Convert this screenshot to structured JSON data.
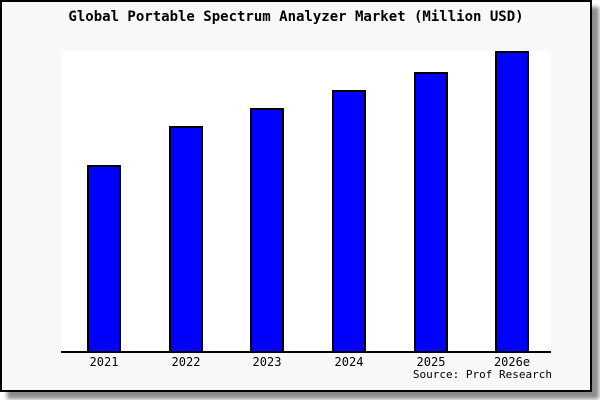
{
  "chart": {
    "source": "Source: Prof Research",
    "colors": {
      "bar_fill": "#0000ff",
      "bar_border": "#000000",
      "panel_bg": "#f8f8f8",
      "plot_bg": "#ffffff",
      "axis": "#000000",
      "text": "#000000"
    }
  },
  "chart_data": {
    "type": "bar",
    "title": "Global Portable Spectrum Analyzer Market (Million USD)",
    "categories": [
      "2021",
      "2022",
      "2023",
      "2024",
      "2025",
      "2026e"
    ],
    "values": [
      62,
      75,
      81,
      87,
      93,
      100
    ],
    "value_note": "No y-axis ticks or data labels are shown in the image; values are relative bar heights in percent of the tallest bar (2026e = 100).",
    "xlabel": "",
    "ylabel": "",
    "ylim": [
      0,
      100
    ],
    "grid": false,
    "legend": false,
    "y_axis_visible": false,
    "annotations": [
      "Source: Prof Research"
    ]
  }
}
